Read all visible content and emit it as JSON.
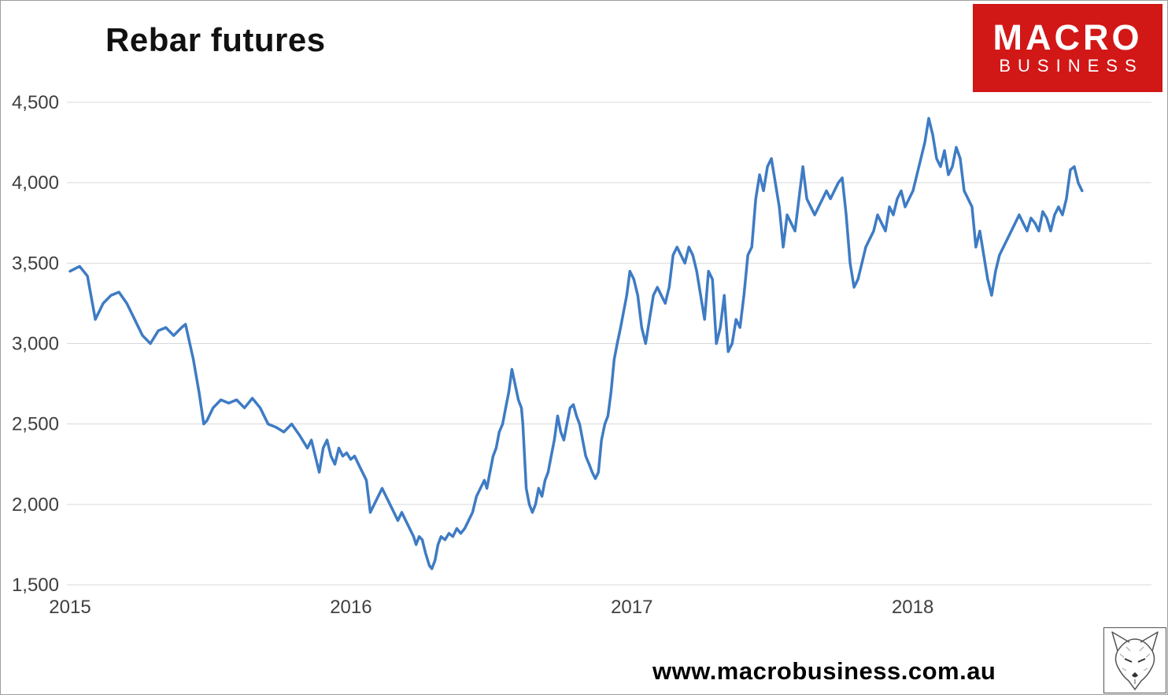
{
  "title": "Rebar futures",
  "logo": {
    "line1": "MACRO",
    "line2": "BUSINESS",
    "bg_color": "#d21717",
    "text_color": "#ffffff"
  },
  "footer": {
    "url": "www.macrobusiness.com.au"
  },
  "watermark": {
    "description": "fox-sketch"
  },
  "chart_data": {
    "type": "line",
    "title": "Rebar futures",
    "xlabel": "",
    "ylabel": "",
    "grid": "horizontal",
    "gridline_color": "#d9d9d9",
    "legend": "none",
    "xlim": [
      2015.0,
      2018.85
    ],
    "ylim": [
      1500,
      4500
    ],
    "x_ticks": [
      2015,
      2016,
      2017,
      2018
    ],
    "x_tick_labels": [
      "2015",
      "2016",
      "2017",
      "2018"
    ],
    "y_ticks": [
      1500,
      2000,
      2500,
      3000,
      3500,
      4000,
      4500
    ],
    "y_tick_labels": [
      "1,500",
      "2,000",
      "2,500",
      "3,000",
      "3,500",
      "4,000",
      "4,500"
    ],
    "series": [
      {
        "name": "Rebar futures price",
        "color": "#3e7bc4",
        "stroke_width": 3.5,
        "points": [
          [
            2015.0,
            3450
          ],
          [
            2015.034,
            3480
          ],
          [
            2015.062,
            3420
          ],
          [
            2015.09,
            3150
          ],
          [
            2015.118,
            3250
          ],
          [
            2015.146,
            3300
          ],
          [
            2015.174,
            3320
          ],
          [
            2015.202,
            3250
          ],
          [
            2015.23,
            3150
          ],
          [
            2015.258,
            3050
          ],
          [
            2015.286,
            3000
          ],
          [
            2015.314,
            3080
          ],
          [
            2015.341,
            3100
          ],
          [
            2015.369,
            3050
          ],
          [
            2015.397,
            3100
          ],
          [
            2015.411,
            3120
          ],
          [
            2015.439,
            2900
          ],
          [
            2015.459,
            2700
          ],
          [
            2015.476,
            2500
          ],
          [
            2015.487,
            2520
          ],
          [
            2015.509,
            2600
          ],
          [
            2015.537,
            2650
          ],
          [
            2015.565,
            2630
          ],
          [
            2015.593,
            2650
          ],
          [
            2015.621,
            2600
          ],
          [
            2015.649,
            2660
          ],
          [
            2015.677,
            2600
          ],
          [
            2015.705,
            2500
          ],
          [
            2015.733,
            2480
          ],
          [
            2015.761,
            2450
          ],
          [
            2015.789,
            2500
          ],
          [
            2015.817,
            2430
          ],
          [
            2015.845,
            2350
          ],
          [
            2015.859,
            2400
          ],
          [
            2015.873,
            2300
          ],
          [
            2015.887,
            2200
          ],
          [
            2015.901,
            2350
          ],
          [
            2015.915,
            2400
          ],
          [
            2015.929,
            2300
          ],
          [
            2015.943,
            2250
          ],
          [
            2015.957,
            2350
          ],
          [
            2015.971,
            2300
          ],
          [
            2015.985,
            2320
          ],
          [
            2015.999,
            2280
          ],
          [
            2016.013,
            2300
          ],
          [
            2016.027,
            2250
          ],
          [
            2016.041,
            2200
          ],
          [
            2016.055,
            2150
          ],
          [
            2016.069,
            1950
          ],
          [
            2016.083,
            2000
          ],
          [
            2016.097,
            2050
          ],
          [
            2016.111,
            2100
          ],
          [
            2016.125,
            2050
          ],
          [
            2016.139,
            2000
          ],
          [
            2016.153,
            1950
          ],
          [
            2016.167,
            1900
          ],
          [
            2016.181,
            1950
          ],
          [
            2016.195,
            1900
          ],
          [
            2016.209,
            1850
          ],
          [
            2016.223,
            1800
          ],
          [
            2016.232,
            1750
          ],
          [
            2016.243,
            1800
          ],
          [
            2016.254,
            1780
          ],
          [
            2016.265,
            1700
          ],
          [
            2016.279,
            1620
          ],
          [
            2016.288,
            1600
          ],
          [
            2016.299,
            1650
          ],
          [
            2016.31,
            1750
          ],
          [
            2016.321,
            1800
          ],
          [
            2016.335,
            1780
          ],
          [
            2016.349,
            1820
          ],
          [
            2016.363,
            1800
          ],
          [
            2016.377,
            1850
          ],
          [
            2016.391,
            1820
          ],
          [
            2016.405,
            1850
          ],
          [
            2016.419,
            1900
          ],
          [
            2016.433,
            1950
          ],
          [
            2016.447,
            2050
          ],
          [
            2016.461,
            2100
          ],
          [
            2016.475,
            2150
          ],
          [
            2016.484,
            2100
          ],
          [
            2016.495,
            2200
          ],
          [
            2016.506,
            2300
          ],
          [
            2016.517,
            2350
          ],
          [
            2016.528,
            2450
          ],
          [
            2016.54,
            2500
          ],
          [
            2016.551,
            2600
          ],
          [
            2016.562,
            2700
          ],
          [
            2016.573,
            2840
          ],
          [
            2016.584,
            2750
          ],
          [
            2016.596,
            2650
          ],
          [
            2016.607,
            2600
          ],
          [
            2016.612,
            2500
          ],
          [
            2016.624,
            2100
          ],
          [
            2016.635,
            2000
          ],
          [
            2016.646,
            1950
          ],
          [
            2016.657,
            2000
          ],
          [
            2016.668,
            2100
          ],
          [
            2016.68,
            2050
          ],
          [
            2016.691,
            2150
          ],
          [
            2016.702,
            2200
          ],
          [
            2016.713,
            2300
          ],
          [
            2016.724,
            2400
          ],
          [
            2016.736,
            2550
          ],
          [
            2016.747,
            2450
          ],
          [
            2016.758,
            2400
          ],
          [
            2016.769,
            2500
          ],
          [
            2016.78,
            2600
          ],
          [
            2016.792,
            2620
          ],
          [
            2016.803,
            2550
          ],
          [
            2016.814,
            2500
          ],
          [
            2016.825,
            2400
          ],
          [
            2016.836,
            2300
          ],
          [
            2016.848,
            2250
          ],
          [
            2016.859,
            2200
          ],
          [
            2016.87,
            2160
          ],
          [
            2016.881,
            2200
          ],
          [
            2016.892,
            2400
          ],
          [
            2016.904,
            2500
          ],
          [
            2016.915,
            2550
          ],
          [
            2016.926,
            2700
          ],
          [
            2016.937,
            2900
          ],
          [
            2016.948,
            3000
          ],
          [
            2016.96,
            3100
          ],
          [
            2016.971,
            3200
          ],
          [
            2016.982,
            3300
          ],
          [
            2016.993,
            3450
          ],
          [
            2017.007,
            3400
          ],
          [
            2017.021,
            3300
          ],
          [
            2017.035,
            3100
          ],
          [
            2017.049,
            3000
          ],
          [
            2017.063,
            3150
          ],
          [
            2017.077,
            3300
          ],
          [
            2017.091,
            3350
          ],
          [
            2017.105,
            3300
          ],
          [
            2017.119,
            3250
          ],
          [
            2017.133,
            3350
          ],
          [
            2017.147,
            3550
          ],
          [
            2017.161,
            3600
          ],
          [
            2017.175,
            3550
          ],
          [
            2017.189,
            3500
          ],
          [
            2017.203,
            3600
          ],
          [
            2017.217,
            3550
          ],
          [
            2017.231,
            3450
          ],
          [
            2017.245,
            3300
          ],
          [
            2017.259,
            3150
          ],
          [
            2017.273,
            3450
          ],
          [
            2017.287,
            3400
          ],
          [
            2017.301,
            3000
          ],
          [
            2017.315,
            3100
          ],
          [
            2017.329,
            3300
          ],
          [
            2017.343,
            2950
          ],
          [
            2017.357,
            3000
          ],
          [
            2017.371,
            3150
          ],
          [
            2017.385,
            3100
          ],
          [
            2017.399,
            3300
          ],
          [
            2017.413,
            3550
          ],
          [
            2017.427,
            3600
          ],
          [
            2017.441,
            3900
          ],
          [
            2017.455,
            4050
          ],
          [
            2017.469,
            3950
          ],
          [
            2017.483,
            4100
          ],
          [
            2017.497,
            4150
          ],
          [
            2017.511,
            4000
          ],
          [
            2017.525,
            3850
          ],
          [
            2017.539,
            3600
          ],
          [
            2017.553,
            3800
          ],
          [
            2017.567,
            3750
          ],
          [
            2017.581,
            3700
          ],
          [
            2017.595,
            3900
          ],
          [
            2017.609,
            4100
          ],
          [
            2017.623,
            3900
          ],
          [
            2017.637,
            3850
          ],
          [
            2017.651,
            3800
          ],
          [
            2017.665,
            3850
          ],
          [
            2017.679,
            3900
          ],
          [
            2017.693,
            3950
          ],
          [
            2017.707,
            3900
          ],
          [
            2017.721,
            3950
          ],
          [
            2017.735,
            4000
          ],
          [
            2017.749,
            4030
          ],
          [
            2017.763,
            3800
          ],
          [
            2017.777,
            3500
          ],
          [
            2017.791,
            3350
          ],
          [
            2017.805,
            3400
          ],
          [
            2017.819,
            3500
          ],
          [
            2017.833,
            3600
          ],
          [
            2017.847,
            3650
          ],
          [
            2017.861,
            3700
          ],
          [
            2017.875,
            3800
          ],
          [
            2017.889,
            3750
          ],
          [
            2017.903,
            3700
          ],
          [
            2017.917,
            3850
          ],
          [
            2017.931,
            3800
          ],
          [
            2017.945,
            3900
          ],
          [
            2017.959,
            3950
          ],
          [
            2017.973,
            3850
          ],
          [
            2017.987,
            3900
          ],
          [
            2018.001,
            3950
          ],
          [
            2018.015,
            4050
          ],
          [
            2018.029,
            4150
          ],
          [
            2018.043,
            4250
          ],
          [
            2018.057,
            4400
          ],
          [
            2018.071,
            4300
          ],
          [
            2018.085,
            4150
          ],
          [
            2018.099,
            4100
          ],
          [
            2018.113,
            4200
          ],
          [
            2018.127,
            4050
          ],
          [
            2018.141,
            4100
          ],
          [
            2018.155,
            4220
          ],
          [
            2018.169,
            4150
          ],
          [
            2018.183,
            3950
          ],
          [
            2018.197,
            3900
          ],
          [
            2018.211,
            3850
          ],
          [
            2018.225,
            3600
          ],
          [
            2018.239,
            3700
          ],
          [
            2018.253,
            3550
          ],
          [
            2018.267,
            3400
          ],
          [
            2018.281,
            3300
          ],
          [
            2018.295,
            3450
          ],
          [
            2018.309,
            3550
          ],
          [
            2018.323,
            3600
          ],
          [
            2018.337,
            3650
          ],
          [
            2018.351,
            3700
          ],
          [
            2018.365,
            3750
          ],
          [
            2018.379,
            3800
          ],
          [
            2018.393,
            3750
          ],
          [
            2018.407,
            3700
          ],
          [
            2018.421,
            3780
          ],
          [
            2018.435,
            3750
          ],
          [
            2018.449,
            3700
          ],
          [
            2018.463,
            3820
          ],
          [
            2018.477,
            3780
          ],
          [
            2018.491,
            3700
          ],
          [
            2018.505,
            3800
          ],
          [
            2018.519,
            3850
          ],
          [
            2018.533,
            3800
          ],
          [
            2018.547,
            3900
          ],
          [
            2018.561,
            4080
          ],
          [
            2018.575,
            4100
          ],
          [
            2018.589,
            4000
          ],
          [
            2018.603,
            3950
          ]
        ]
      }
    ]
  }
}
